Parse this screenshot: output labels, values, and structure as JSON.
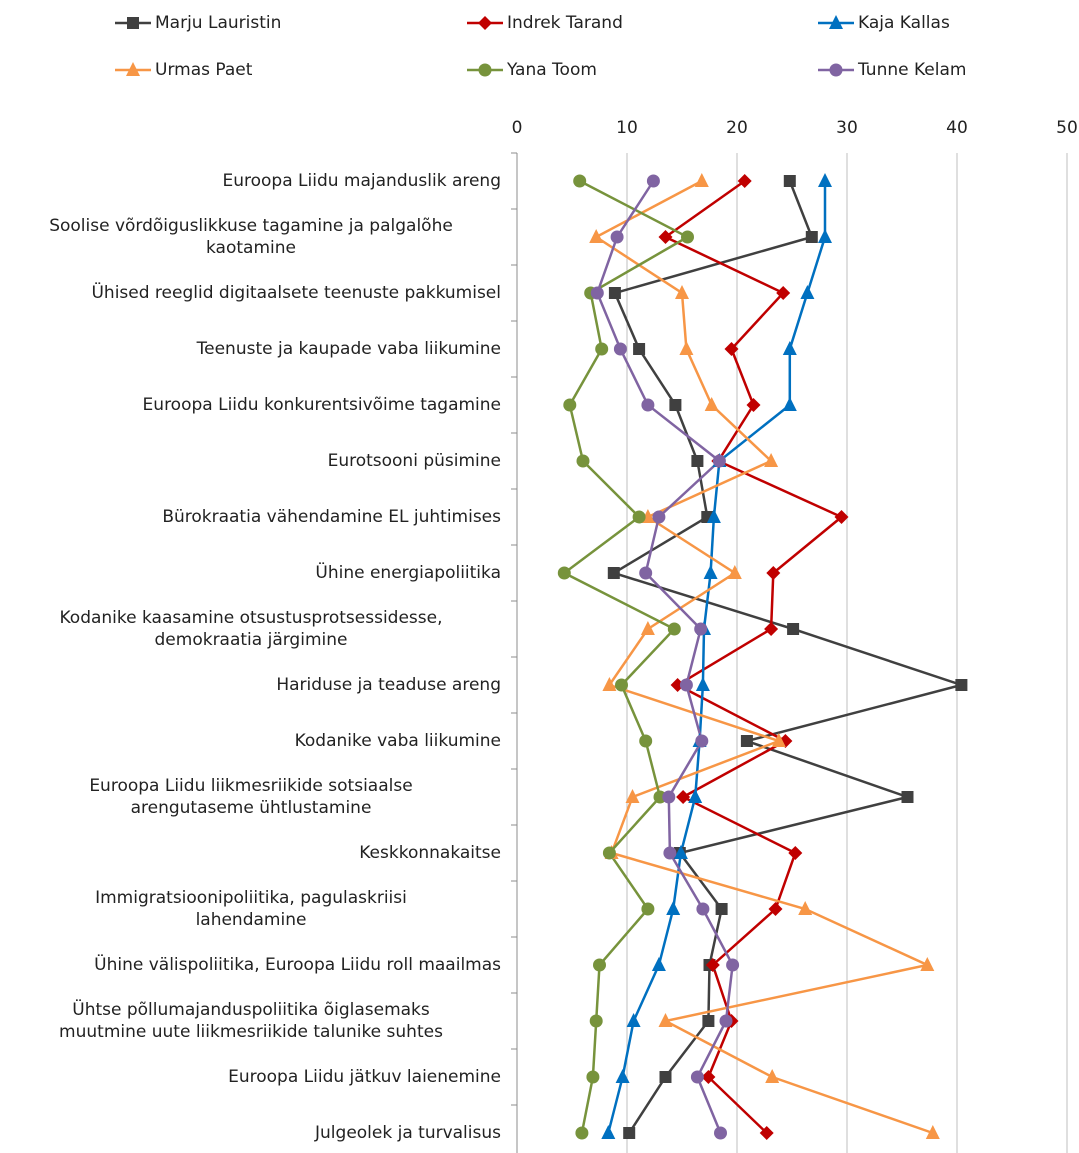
{
  "chart_data": {
    "type": "line",
    "orientation": "horizontal",
    "categories": [
      "Euroopa Liidu majanduslik areng",
      "Soolise võrdõiguslikkuse tagamine ja palgalõhe\nkaotamine",
      "Ühised reeglid digitaalsete teenuste pakkumisel",
      "Teenuste ja kaupade vaba liikumine",
      "Euroopa Liidu konkurentsivõime tagamine",
      "Eurotsooni püsimine",
      "Bürokraatia vähendamine EL juhtimises",
      "Ühine energiapoliitika",
      "Kodanike kaasamine otsustusprotsessidesse,\ndemokraatia järgimine",
      "Hariduse ja teaduse areng",
      "Kodanike vaba liikumine",
      "Euroopa Liidu liikmesriikide sotsiaalse\narengutaseme ühtlustamine",
      "Keskkonnakaitse",
      "Immigratsioonipoliitika, pagulaskriisi\nlahendamine",
      "Ühine välispoliitika, Euroopa Liidu roll maailmas",
      "Ühtse põllumajanduspoliitika õiglasemaks\nmuutmine uute liikmesriikide talunike suhtes",
      "Euroopa Liidu jätkuv laienemine",
      "Julgeolek ja turvalisus"
    ],
    "series": [
      {
        "name": "Marju Lauristin",
        "color": "#404040",
        "marker": "square",
        "values": [
          24.8,
          26.8,
          8.9,
          11.1,
          14.4,
          16.4,
          17.3,
          8.8,
          25.1,
          40.4,
          20.9,
          35.5,
          14.8,
          18.6,
          17.5,
          17.4,
          13.5,
          10.2
        ]
      },
      {
        "name": "Indrek Tarand",
        "color": "#c00000",
        "marker": "diamond",
        "values": [
          20.7,
          13.5,
          24.2,
          19.5,
          21.5,
          18.3,
          29.5,
          23.3,
          23.1,
          14.6,
          24.4,
          15.1,
          25.3,
          23.5,
          17.8,
          19.5,
          17.4,
          22.7
        ]
      },
      {
        "name": "Kaja Kallas",
        "color": "#0070c0",
        "marker": "triangle",
        "values": [
          28,
          28,
          26.4,
          24.8,
          24.8,
          18.4,
          17.9,
          17.6,
          17,
          16.9,
          16.6,
          16.2,
          14.9,
          14.2,
          12.9,
          10.6,
          9.6,
          8.3
        ]
      },
      {
        "name": "Urmas Paet",
        "color": "#f79646",
        "marker": "triangle",
        "values": [
          16.8,
          7.2,
          15,
          15.4,
          17.7,
          23.1,
          11.9,
          19.8,
          11.9,
          8.4,
          23.8,
          10.5,
          8.6,
          26.2,
          37.3,
          13.5,
          23.2,
          37.8
        ]
      },
      {
        "name": "Yana Toom",
        "color": "#77933c",
        "marker": "circle",
        "values": [
          5.7,
          15.5,
          6.7,
          7.7,
          4.8,
          6,
          11.1,
          4.3,
          14.3,
          9.5,
          11.7,
          13,
          8.4,
          11.9,
          7.5,
          7.2,
          6.9,
          5.9
        ]
      },
      {
        "name": "Tunne Kelam",
        "color": "#8064a2",
        "marker": "circle",
        "values": [
          12.4,
          9.1,
          7.3,
          9.4,
          11.9,
          18.4,
          12.9,
          11.7,
          16.7,
          15.4,
          16.8,
          13.8,
          13.9,
          16.9,
          19.6,
          19,
          16.4,
          18.5
        ]
      }
    ],
    "xlim": [
      0,
      50
    ],
    "xticks": [
      0,
      10,
      20,
      30,
      40,
      50
    ],
    "grid": true,
    "legend": "top"
  }
}
